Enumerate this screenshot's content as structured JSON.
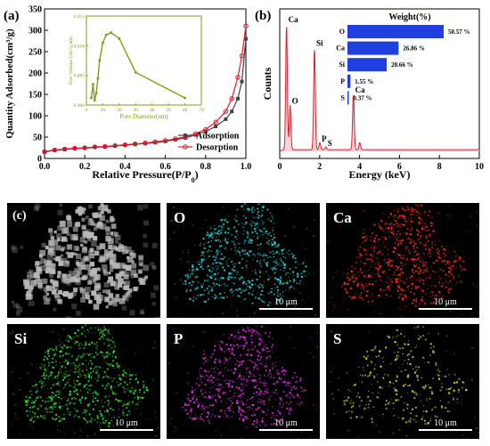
{
  "panel_a": {
    "label": "(a)",
    "chart_data": {
      "type": "line",
      "xlabel": "Relative Pressure(P/P0)",
      "ylabel": "Quantity Adsorbed(cm³/g)",
      "xlim": [
        0.0,
        1.0
      ],
      "ylim": [
        0,
        350
      ],
      "xticks": [
        "0.0",
        "0.2",
        "0.4",
        "0.6",
        "0.8",
        "1.0"
      ],
      "yticks": [
        "0",
        "50",
        "100",
        "150",
        "200",
        "250",
        "300",
        "350"
      ],
      "legend": "bottom-right",
      "series": [
        {
          "name": "Adsorption",
          "color": "#444444",
          "x": [
            0.0,
            0.05,
            0.1,
            0.15,
            0.2,
            0.25,
            0.3,
            0.35,
            0.4,
            0.45,
            0.5,
            0.55,
            0.6,
            0.65,
            0.7,
            0.75,
            0.8,
            0.85,
            0.9,
            0.93,
            0.96,
            0.98,
            1.0
          ],
          "y": [
            15,
            19,
            21,
            23,
            24,
            26,
            27,
            29,
            31,
            33,
            35,
            37,
            40,
            44,
            48,
            55,
            63,
            75,
            92,
            110,
            140,
            180,
            280
          ]
        },
        {
          "name": "Desorption",
          "color": "#e8192c",
          "x": [
            0.0,
            0.05,
            0.1,
            0.15,
            0.2,
            0.25,
            0.3,
            0.35,
            0.4,
            0.45,
            0.5,
            0.55,
            0.6,
            0.65,
            0.7,
            0.75,
            0.8,
            0.85,
            0.9,
            0.93,
            0.96,
            0.98,
            1.0
          ],
          "y": [
            16,
            20,
            22,
            24,
            25,
            27,
            28,
            30,
            32,
            34,
            36,
            39,
            42,
            46,
            51,
            58,
            68,
            85,
            110,
            140,
            190,
            240,
            310
          ]
        }
      ],
      "inset": {
        "type": "line",
        "xlabel": "Pore Diameter(nm)",
        "ylabel": "Pore Volume (cm³/g nm)",
        "xlim": [
          0,
          70
        ],
        "ylim": [
          0,
          0.015
        ],
        "xticks": [
          "0",
          "10",
          "20",
          "30",
          "40",
          "50",
          "60",
          "70"
        ],
        "yticks": [
          "0.000",
          "0.005",
          "0.010",
          "0.015"
        ],
        "color": "#8a9a1a",
        "x": [
          3,
          4,
          5,
          6,
          7,
          8,
          10,
          12,
          15,
          20,
          30,
          60
        ],
        "y": [
          0.0012,
          0.0035,
          0.0008,
          0.002,
          0.0045,
          0.0075,
          0.0105,
          0.0118,
          0.0122,
          0.0112,
          0.0055,
          0.0012
        ]
      }
    }
  },
  "panel_b": {
    "label": "(b)",
    "chart_data": {
      "type": "line",
      "xlabel": "Energy (keV)",
      "ylabel": "Counts",
      "xlim": [
        0,
        10
      ],
      "xticks": [
        "0",
        "2",
        "4",
        "6",
        "8",
        "10"
      ],
      "peaks": [
        {
          "label": "Ca",
          "x": 0.34,
          "height": 0.9
        },
        {
          "label": "O",
          "x": 0.52,
          "height": 0.32
        },
        {
          "label": "Si",
          "x": 1.74,
          "height": 0.73
        },
        {
          "label": "P",
          "x": 2.01,
          "height": 0.05
        },
        {
          "label": "S",
          "x": 2.31,
          "height": 0.02
        },
        {
          "label": "Ca",
          "x": 3.69,
          "height": 0.4
        },
        {
          "label": "",
          "x": 4.01,
          "height": 0.05
        }
      ],
      "line_color": "#e8192c",
      "inset": {
        "type": "bar",
        "title": "Weight(%)",
        "color": "#1f3fe0",
        "categories": [
          "O",
          "Ca",
          "Si",
          "P",
          "S"
        ],
        "values": [
          50.57,
          26.86,
          20.66,
          1.55,
          0.37
        ],
        "value_labels": [
          "50.57 %",
          "26.86 %",
          "20.66 %",
          "1.55 %",
          "0.37 %"
        ]
      }
    }
  },
  "panel_c": {
    "label": "(c)",
    "maps": [
      {
        "element": "",
        "color": "#b8b8b8",
        "scale_bar": ""
      },
      {
        "element": "O",
        "color": "#2ad0d0",
        "scale_bar": "10 μm"
      },
      {
        "element": "Ca",
        "color": "#ff2a1a",
        "scale_bar": "10 μm"
      },
      {
        "element": "Si",
        "color": "#33e63a",
        "scale_bar": "10 μm"
      },
      {
        "element": "P",
        "color": "#e030e0",
        "scale_bar": "10 μm"
      },
      {
        "element": "S",
        "color": "#d8d830",
        "scale_bar": "10 μm"
      }
    ]
  }
}
